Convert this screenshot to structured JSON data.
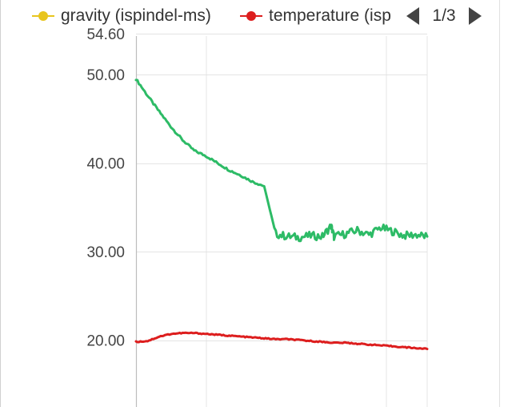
{
  "legend": {
    "items": [
      {
        "label": "gravity  (ispindel-ms)",
        "color": "#e8c51e"
      },
      {
        "label": "temperature  (isp",
        "color": "#dd1e1e"
      }
    ],
    "page_indicator": "1/3"
  },
  "chart_data": {
    "type": "line",
    "ylim": [
      15.5,
      54.6
    ],
    "y_ticks": [
      "54.60",
      "50.00",
      "40.00",
      "30.00",
      "20.00"
    ],
    "y_tick_values": [
      54.6,
      50,
      40,
      30,
      20
    ],
    "grid": true,
    "series": [
      {
        "color": "#2dbb66",
        "x": [
          0,
          2,
          4,
          6,
          8,
          10,
          12,
          14,
          16,
          18,
          20,
          22,
          24,
          26,
          28,
          30,
          32,
          33.5,
          34,
          36,
          38,
          40,
          42,
          44,
          46,
          48,
          50
        ],
        "values": [
          49.5,
          47.6,
          45.8,
          44.1,
          42.6,
          41.4,
          40.8,
          40.0,
          39.2,
          38.6,
          37.9,
          37.4,
          32.0,
          31.7,
          31.6,
          31.8,
          31.7,
          32.9,
          31.7,
          32.0,
          32.4,
          31.9,
          32.7,
          32.3,
          31.8,
          31.9,
          31.7
        ]
      },
      {
        "color": "#dd1e1e",
        "x": [
          0,
          2,
          4,
          6,
          8,
          10,
          12,
          14,
          16,
          18,
          20,
          22,
          24,
          26,
          28,
          30,
          32,
          34,
          36,
          38,
          40,
          42,
          44,
          46,
          48,
          50
        ],
        "values": [
          19.8,
          19.9,
          20.4,
          20.7,
          20.8,
          20.8,
          20.7,
          20.6,
          20.5,
          20.4,
          20.3,
          20.2,
          20.1,
          20.1,
          20.0,
          19.9,
          19.8,
          19.7,
          19.7,
          19.6,
          19.5,
          19.4,
          19.3,
          19.2,
          19.1,
          19.0
        ]
      }
    ]
  }
}
